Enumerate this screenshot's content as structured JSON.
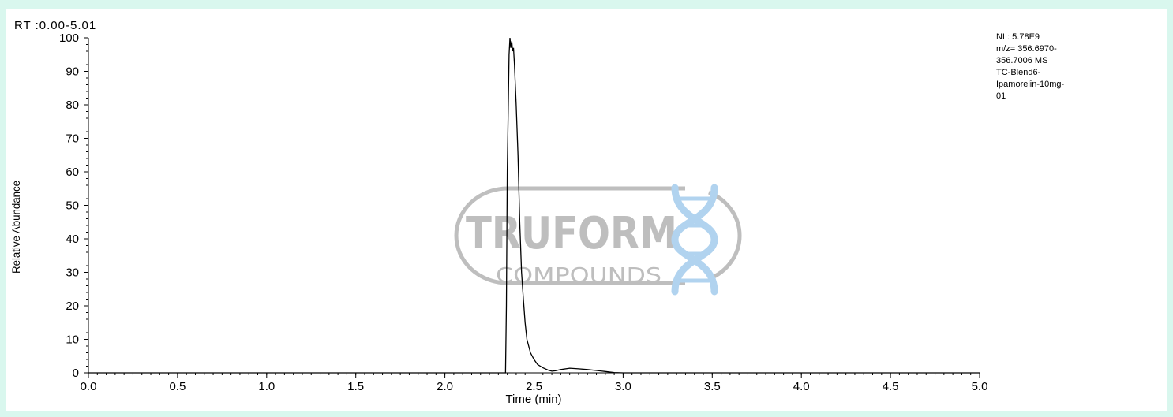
{
  "header": {
    "rt_range": "RT :0.00-5.01"
  },
  "annotation": {
    "lines": [
      "NL: 5.78E9",
      "m/z= 356.6970-",
      "356.7006 MS",
      "TC-Blend6-",
      "Ipamorelin-10mg-",
      "01"
    ]
  },
  "watermark": {
    "brand": "TRUFORM",
    "sub": "COMPOUNDS"
  },
  "colors": {
    "background": "#d9f7ee",
    "trace": "#000000",
    "watermark": "#b8b8b8",
    "watermark_helix": "#a9cfee"
  },
  "chart_data": {
    "type": "line",
    "title": "",
    "xlabel": "Time (min)",
    "ylabel": "Relative Abundance",
    "xlim": [
      0.0,
      5.0
    ],
    "ylim": [
      0,
      100
    ],
    "x_ticks": [
      "0.0",
      "0.5",
      "1.0",
      "1.5",
      "2.0",
      "2.5",
      "3.0",
      "3.5",
      "4.0",
      "4.5",
      "5.0"
    ],
    "y_ticks": [
      "0",
      "10",
      "20",
      "30",
      "40",
      "50",
      "60",
      "70",
      "80",
      "90",
      "100"
    ],
    "grid": false,
    "series": [
      {
        "x": [
          0.0,
          2.3,
          2.34,
          2.345,
          2.35,
          2.36,
          2.365,
          2.37,
          2.375,
          2.38,
          2.385,
          2.39,
          2.4,
          2.41,
          2.42,
          2.43,
          2.44,
          2.45,
          2.46,
          2.48,
          2.5,
          2.52,
          2.55,
          2.58,
          2.6,
          2.62,
          2.65,
          2.7,
          2.75,
          2.8,
          2.85,
          2.9,
          2.95,
          3.0,
          5.0
        ],
        "y": [
          0,
          0,
          0,
          20,
          60,
          95,
          100,
          97,
          99,
          96,
          97,
          92,
          80,
          65,
          45,
          30,
          22,
          15,
          10,
          6,
          4,
          2.5,
          1.5,
          0.8,
          0.5,
          0.6,
          1.0,
          1.4,
          1.2,
          1.0,
          0.7,
          0.4,
          0.1,
          0,
          0
        ]
      }
    ]
  }
}
